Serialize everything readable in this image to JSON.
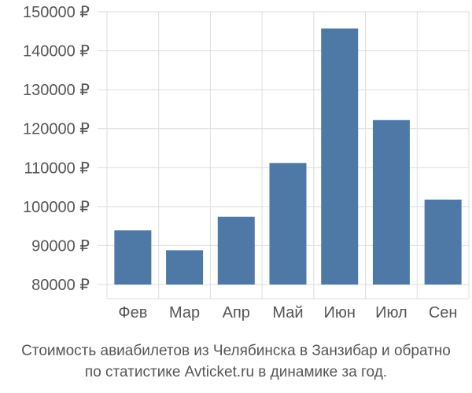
{
  "chart_data": {
    "type": "bar",
    "categories": [
      "Фев",
      "Мар",
      "Апр",
      "Май",
      "Июн",
      "Июл",
      "Сен"
    ],
    "values": [
      93900,
      88800,
      97400,
      111200,
      145700,
      122200,
      101800
    ],
    "ylim": [
      80000,
      150000
    ],
    "yticks": [
      80000,
      90000,
      100000,
      110000,
      120000,
      130000,
      140000,
      150000
    ],
    "currency_suffix": " ₽",
    "bar_color": "#4e79a7",
    "grid": true
  },
  "caption": {
    "line1": "Стоимость авиабилетов из Челябинска в Занзибар и обратно",
    "line2": "по статистике Avticket.ru в динамике за год."
  }
}
